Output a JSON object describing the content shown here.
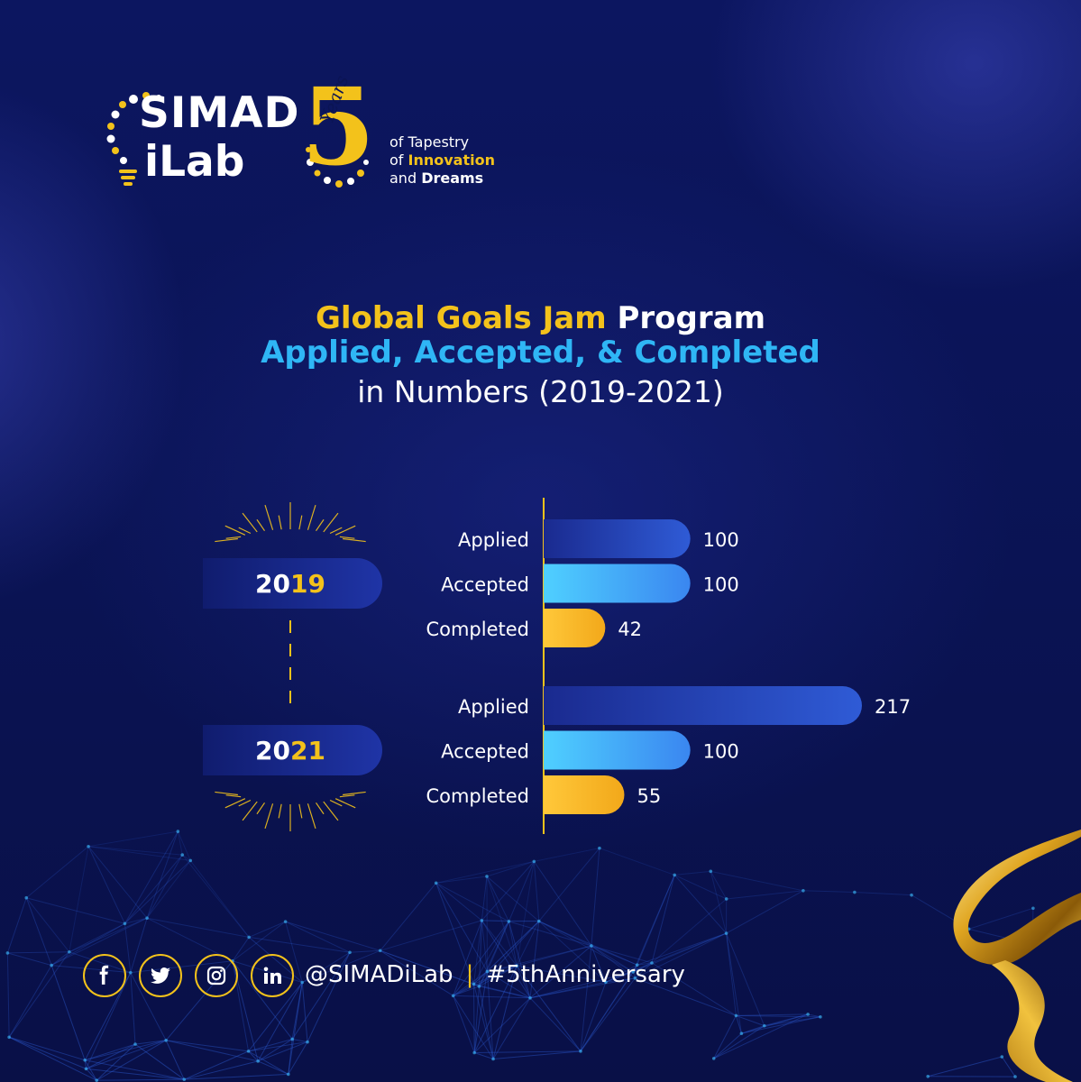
{
  "brand": {
    "name_line1": "SIMAD",
    "name_line2": "iLab",
    "anniversary_number": "5",
    "anniversary_word": "Years",
    "tagline_line1": "of Tapestry",
    "tagline_line2_prefix": "of ",
    "tagline_line2_bold": "Innovation",
    "tagline_line3_prefix": "and ",
    "tagline_line3_bold": "Dreams"
  },
  "heading": {
    "line1_highlight": "Global Goals Jam",
    "line1_rest": " Program",
    "line2": "Applied, Accepted, & Completed",
    "line3": "in Numbers (2019-2021)"
  },
  "chart_data": {
    "type": "bar",
    "orientation": "horizontal",
    "groups": [
      {
        "year_prefix": "20",
        "year_suffix": "19",
        "bars": [
          {
            "category": "Applied",
            "value": 100
          },
          {
            "category": "Accepted",
            "value": 100
          },
          {
            "category": "Completed",
            "value": 42
          }
        ]
      },
      {
        "year_prefix": "20",
        "year_suffix": "21",
        "bars": [
          {
            "category": "Applied",
            "value": 217
          },
          {
            "category": "Accepted",
            "value": 100
          },
          {
            "category": "Completed",
            "value": 55
          }
        ]
      }
    ],
    "xlim": [
      0,
      217
    ],
    "grid": false,
    "colors": {
      "Applied": [
        "#1a2a8f",
        "#2f5bd6"
      ],
      "Accepted": [
        "#4fd0ff",
        "#3a86f0"
      ],
      "Completed": [
        "#ffc83a",
        "#f2a81a"
      ],
      "year_accent": "#f3c21b",
      "axis": "#f3c21b"
    }
  },
  "footer": {
    "social_icons": [
      "facebook-icon",
      "twitter-icon",
      "instagram-icon",
      "linkedin-icon"
    ],
    "handle": "@SIMADiLab",
    "separator": "|",
    "hashtag": "#5thAnniversary"
  }
}
